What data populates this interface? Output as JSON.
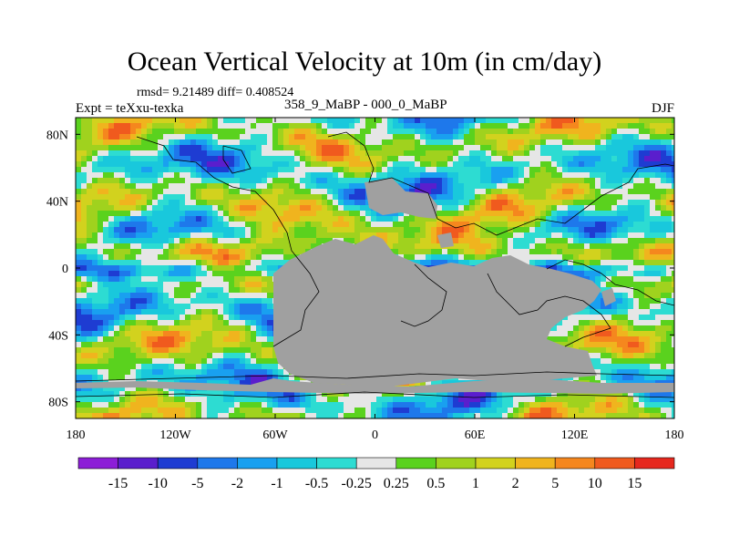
{
  "title": "Ocean Vertical Velocity at 10m (in cm/day)",
  "stats": "rmsd= 9.21489 diff= 0.408524",
  "experiment": "Expt = teXxu-texka",
  "diff_label": "358_9_MaBP - 000_0_MaBP",
  "season": "DJF",
  "map": {
    "lon_range": [
      -180,
      180
    ],
    "lat_range": [
      -90,
      90
    ],
    "x_ticks": [
      {
        "lon": -180,
        "label": "180"
      },
      {
        "lon": -120,
        "label": "120W"
      },
      {
        "lon": -60,
        "label": "60W"
      },
      {
        "lon": 0,
        "label": "0"
      },
      {
        "lon": 60,
        "label": "60E"
      },
      {
        "lon": 120,
        "label": "120E"
      },
      {
        "lon": 180,
        "label": "180"
      }
    ],
    "y_ticks": [
      {
        "lat": 80,
        "label": "80N"
      },
      {
        "lat": 40,
        "label": "40N"
      },
      {
        "lat": 0,
        "label": "0"
      },
      {
        "lat": -40,
        "label": "40S"
      },
      {
        "lat": -80,
        "label": "80S"
      }
    ],
    "land_color": "#a0a0a0"
  },
  "colorbar": {
    "levels": [
      "-15",
      "-10",
      "-5",
      "-2",
      "-1",
      "-0.5",
      "-0.25",
      "0.25",
      "0.5",
      "1",
      "2",
      "5",
      "10",
      "15"
    ],
    "colors": [
      "#8c1ed7",
      "#5a1ecd",
      "#1e3cd2",
      "#1e78eb",
      "#19a0f0",
      "#19c8dc",
      "#2ddcd2",
      "#e6e6e6",
      "#5ad21e",
      "#a0d21e",
      "#d2d21e",
      "#f0b41e",
      "#f5871e",
      "#f05a1e",
      "#e6281e"
    ]
  }
}
